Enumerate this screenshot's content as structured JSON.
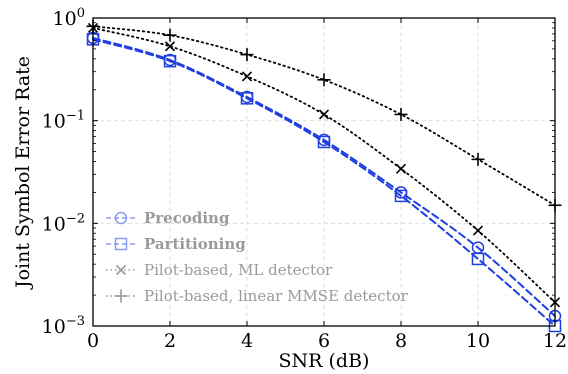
{
  "chart_data": {
    "type": "line",
    "xlabel": "SNR (dB)",
    "ylabel": "Joint Symbol Error Rate",
    "xlim": [
      0,
      12
    ],
    "ylim": [
      0.001,
      1
    ],
    "yscale": "log",
    "grid": true,
    "legend_position": "bottom-left",
    "x_ticks": [
      "0",
      "2",
      "4",
      "6",
      "8",
      "10",
      "12"
    ],
    "y_ticks": [
      {
        "value": 1,
        "base": "10",
        "exp": "0"
      },
      {
        "value": 0.1,
        "base": "10",
        "exp": "−1"
      },
      {
        "value": 0.01,
        "base": "10",
        "exp": "−2"
      },
      {
        "value": 0.001,
        "base": "10",
        "exp": "−3"
      }
    ],
    "x": [
      0,
      2,
      4,
      6,
      8,
      10,
      12
    ],
    "series": [
      {
        "name": "Precoding",
        "color": "#1f3fe0",
        "dash": "dashed",
        "marker": "circle",
        "bold": true,
        "values": [
          0.64,
          0.39,
          0.17,
          0.065,
          0.02,
          0.0058,
          0.00125
        ]
      },
      {
        "name": "Partitioning",
        "color": "#1f3fe0",
        "dash": "dashed",
        "marker": "square",
        "bold": true,
        "values": [
          0.62,
          0.38,
          0.165,
          0.062,
          0.0185,
          0.0045,
          0.001
        ]
      },
      {
        "name": "Pilot-based, ML detector",
        "color": "#000000",
        "dash": "dotted",
        "marker": "x",
        "bold": false,
        "values": [
          0.8,
          0.53,
          0.27,
          0.115,
          0.034,
          0.0085,
          0.0017
        ]
      },
      {
        "name": "Pilot-based, linear MMSE detector",
        "color": "#000000",
        "dash": "dotted",
        "marker": "plus",
        "bold": false,
        "values": [
          0.83,
          0.68,
          0.44,
          0.25,
          0.115,
          0.042,
          0.015
        ]
      }
    ]
  }
}
